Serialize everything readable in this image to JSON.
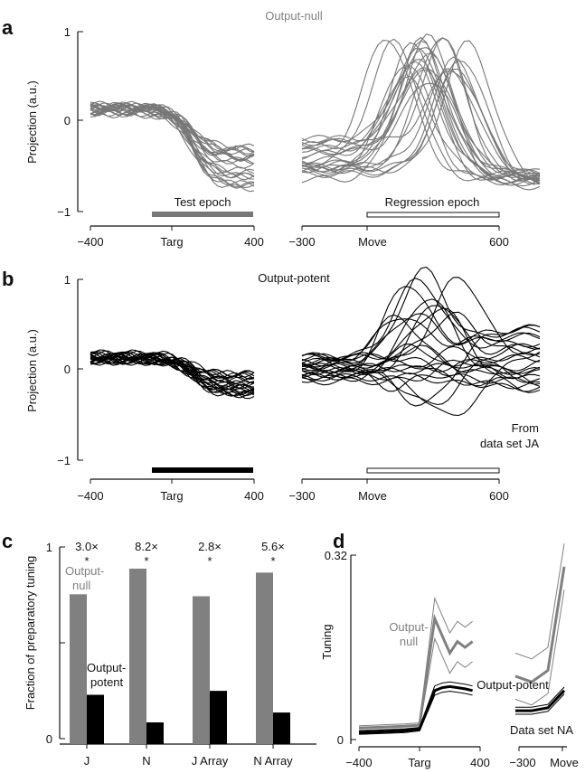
{
  "panels": {
    "a": {
      "letter": "a",
      "title": "Output-null",
      "ylabel": "Projection (a.u.)",
      "yticks": [
        "1",
        "0",
        "−1"
      ],
      "xticks_left": [
        "−400",
        "Targ",
        "400"
      ],
      "xticks_right": [
        "−300",
        "Move",
        "600"
      ],
      "epoch_left": "Test epoch",
      "epoch_right": "Regression epoch",
      "color": "#777777"
    },
    "b": {
      "letter": "b",
      "title": "Output-potent",
      "ylabel": "Projection (a.u.)",
      "yticks": [
        "1",
        "0",
        "−1"
      ],
      "xticks_left": [
        "−400",
        "Targ",
        "400"
      ],
      "xticks_right": [
        "−300",
        "Move",
        "600"
      ],
      "note_line1": "From",
      "note_line2": "data set JA",
      "color": "#000000"
    },
    "c": {
      "letter": "c",
      "ylabel": "Fraction of preparatory tuning",
      "yticks": [
        "1",
        "0"
      ],
      "null_label_line1": "Output-",
      "null_label_line2": "null",
      "potent_label_line1": "Output-",
      "potent_label_line2": "potent"
    },
    "d": {
      "letter": "d",
      "ylabel": "Tuning",
      "yticks": [
        "0.32",
        "0"
      ],
      "xticks_left": [
        "−400",
        "Targ",
        "400"
      ],
      "xticks_right": [
        "−300",
        "Move"
      ],
      "null_label_line1": "Output-",
      "null_label_line2": "null",
      "potent_label": "Output-potent",
      "dataset_label": "Data set NA"
    }
  },
  "chart_data": [
    {
      "type": "line",
      "panel": "a",
      "title": "Output-null",
      "ylabel": "Projection (a.u.)",
      "ylim": [
        -1,
        1
      ],
      "xlim_left": [
        -400,
        400
      ],
      "xlim_right": [
        -300,
        600
      ],
      "n_traces": 24,
      "series_color": "#777777"
    },
    {
      "type": "line",
      "panel": "b",
      "title": "Output-potent",
      "ylabel": "Projection (a.u.)",
      "ylim": [
        -1,
        1
      ],
      "xlim_left": [
        -400,
        400
      ],
      "xlim_right": [
        -300,
        600
      ],
      "n_traces": 24,
      "series_color": "#000000"
    },
    {
      "type": "bar",
      "panel": "c",
      "ylabel": "Fraction of preparatory tuning",
      "ylim": [
        0,
        1
      ],
      "categories": [
        "J",
        "N",
        "J Array",
        "N Array"
      ],
      "ratios": [
        "3.0×",
        "8.2×",
        "2.8×",
        "5.6×"
      ],
      "significance": [
        "*",
        "*",
        "*",
        "*"
      ],
      "series": [
        {
          "name": "Output-null",
          "color": "#808080",
          "values": [
            0.76,
            0.89,
            0.75,
            0.87
          ]
        },
        {
          "name": "Output-potent",
          "color": "#000000",
          "values": [
            0.25,
            0.11,
            0.27,
            0.16
          ]
        }
      ]
    },
    {
      "type": "line",
      "panel": "d",
      "ylabel": "Tuning",
      "ylim": [
        0,
        0.32
      ],
      "xlim_left": [
        -400,
        400
      ],
      "xlim_right": [
        -300,
        0
      ],
      "series": [
        {
          "name": "Output-null",
          "color": "#808080",
          "x": [
            -400,
            -300,
            -200,
            -100,
            0,
            100,
            150,
            200,
            250,
            300,
            350
          ],
          "y": [
            0.02,
            0.021,
            0.022,
            0.023,
            0.025,
            0.21,
            0.18,
            0.15,
            0.17,
            0.16,
            0.17
          ]
        },
        {
          "name": "Output-potent",
          "color": "#000000",
          "x": [
            -400,
            -300,
            -200,
            -100,
            0,
            100,
            150,
            200,
            250,
            300,
            350
          ],
          "y": [
            0.012,
            0.013,
            0.014,
            0.015,
            0.018,
            0.085,
            0.09,
            0.092,
            0.09,
            0.088,
            0.085
          ]
        }
      ]
    }
  ]
}
